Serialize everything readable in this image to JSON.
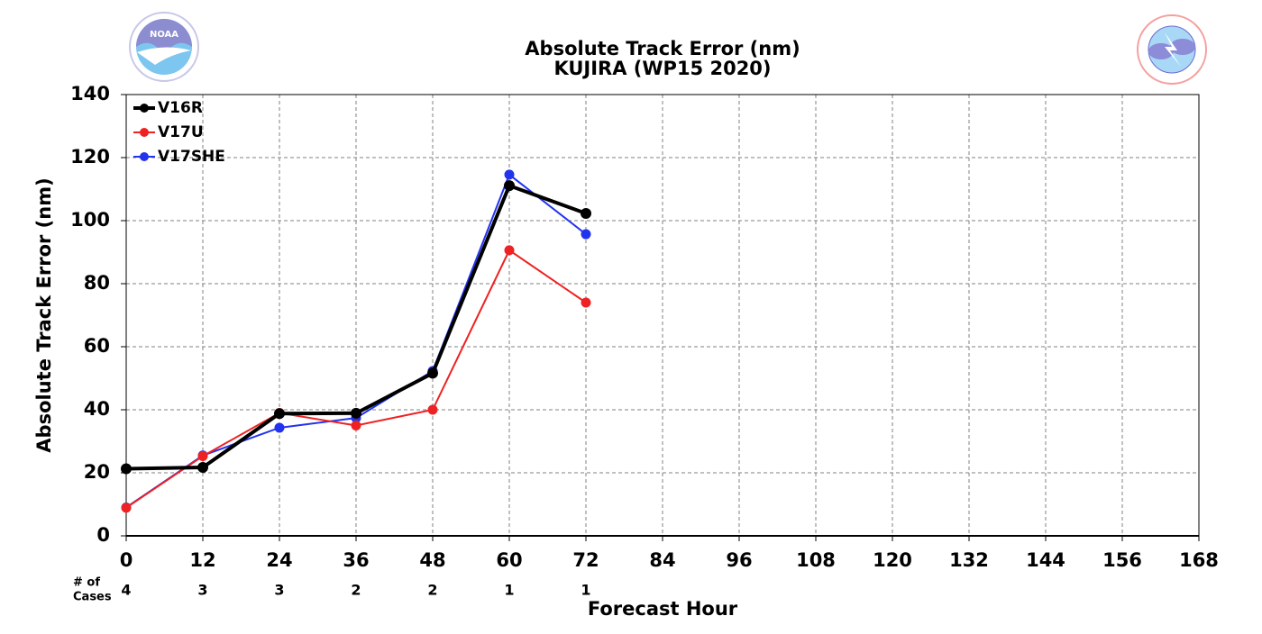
{
  "chart_data": {
    "type": "line",
    "title": "Absolute Track Error (nm)",
    "subtitle": "KUJIRA (WP15 2020)",
    "xlabel": "Forecast Hour",
    "ylabel": "Absolute Track Error (nm)",
    "x": [
      0,
      12,
      24,
      36,
      48,
      60,
      72
    ],
    "series": [
      {
        "name": "V16R",
        "color": "#000000",
        "values": [
          21.3,
          21.7,
          38.8,
          38.9,
          51.6,
          111.1,
          102.3
        ]
      },
      {
        "name": "V17U",
        "color": "#ee2222",
        "values": [
          8.9,
          25.3,
          39.0,
          35.0,
          40.0,
          90.6,
          74.0
        ]
      },
      {
        "name": "V17SHE",
        "color": "#2233ee",
        "values": [
          9.0,
          25.5,
          34.3,
          37.4,
          52.3,
          114.6,
          95.7
        ]
      }
    ],
    "cases_label": [
      "# of",
      "Cases"
    ],
    "cases": [
      4,
      3,
      3,
      2,
      2,
      1,
      1
    ],
    "xlim": [
      0,
      168
    ],
    "xticks": [
      0,
      12,
      24,
      36,
      48,
      60,
      72,
      84,
      96,
      108,
      120,
      132,
      144,
      156,
      168
    ],
    "ylim": [
      0,
      140
    ],
    "yticks": [
      0,
      20,
      40,
      60,
      80,
      100,
      120,
      140
    ],
    "grid": true,
    "legend": "upper left"
  }
}
